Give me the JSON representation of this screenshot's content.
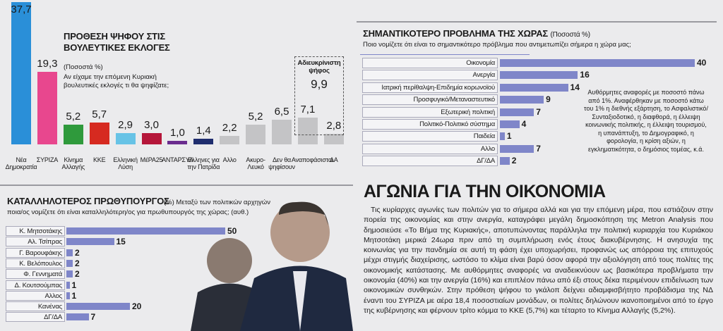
{
  "chart_data": [
    {
      "type": "bar",
      "title": "ΠΡΟΘΕΣΗ ΨΗΦΟΥ ΣΤΙΣ ΒΟΥΛΕΥΤΙΚΕΣ ΕΚΛΟΓΕΣ",
      "subtitle": "(Ποσοστά %)",
      "question": "Αν είχαμε την επόμενη Κυριακή βουλευτικές εκλογές τι θα ψηφίζατε;",
      "categories": [
        "Νέα Δημοκρατία",
        "ΣΥΡΙΖΑ",
        "Κίνημα Αλλαγής",
        "ΚΚΕ",
        "Ελληνική Λύση",
        "ΜέΡΑ25",
        "ΑΝΤΑΡΣΥΑ",
        "Ελληνες για την Πατρίδα",
        "Αλλο",
        "Ακυρο-Λευκό",
        "Δεν θα ψηφίσουν",
        "Αναποφάσιστοι",
        "ΔΑ"
      ],
      "values": [
        37.7,
        19.3,
        5.2,
        5.7,
        2.9,
        3.0,
        1.0,
        1.4,
        2.2,
        5.2,
        6.5,
        7.1,
        2.8
      ],
      "value_labels": [
        "37,7",
        "19,3",
        "5,2",
        "5,7",
        "2,9",
        "3,0",
        "1,0",
        "1,4",
        "2,2",
        "5,2",
        "6,5",
        "7,1",
        "2,8"
      ],
      "colors": [
        "#2a8fd8",
        "#e8478e",
        "#2f9a3c",
        "#d62a20",
        "#67c3e6",
        "#b5163a",
        "#6a2c8e",
        "#1f2d6e",
        "#c4c4c6",
        "#c4c4c6",
        "#c4c4c6",
        "#c4c4c6",
        "#c4c4c6"
      ],
      "annotation": {
        "label": "Αδιευκρίνιστη ψήφος",
        "value": 9.9,
        "value_label": "9,9"
      }
    },
    {
      "type": "barh",
      "title": "ΣΗΜΑΝΤΙΚΟΤΕΡΟ ΠΡΟΒΛΗΜΑ ΤΗΣ ΧΩΡΑΣ",
      "subtitle": "(Ποσοστά %)",
      "question": "Ποιο νομίζετε ότι είναι το σημαντικότερο πρόβλημα που αντιμετωπίζει σήμερα η χώρα μας;",
      "categories": [
        "Οικονομία",
        "Ανεργία",
        "Ιατρική περίθαλψη-Επιδημία κορωνοϊού",
        "Προσφυγικό/Μεταναστευτικό",
        "Εξωτερική πολιτική",
        "Πολιτικό-Πολιτικό σύστημα",
        "Παιδεία",
        "Αλλο",
        "ΔΓ/ΔΑ"
      ],
      "values": [
        40,
        16,
        14,
        9,
        7,
        4,
        1,
        7,
        2
      ],
      "color": "#7f86c9",
      "note": "Αυθόρμητες αναφορές με ποσοστό πάνω από 1%. Αναφέρθηκαν με ποσοστό κάτω του 1% η διεθνής εξάρτηση, το Ασφαλιστικό/Συνταξιοδοτικό, η διαφθορά, η έλλειψη κοινωνικής πολιτικής, η έλλειψη τουρισμού, η υπανάπτυξη, το Δημογραφικό, η φορολογία, η κρίση αξιών, η εγκληματικότητα, ο δημόσιος τομέας, κ.ά."
    },
    {
      "type": "barh",
      "title": "ΚΑΤΑΛΛΗΛΟΤΕΡΟΣ ΠΡΩΘΥΠΟΥΡΓΟΣ",
      "subtitle": "(%) Μεταξύ των πολιτικών αρχηγών ποια/ος νομίζετε ότι είναι καταλληλότερη/ος για πρωθυπουργός της χώρας; (αυθ.)",
      "categories": [
        "Κ. Μητσοτάκης",
        "Αλ. Τσίπρας",
        "Γ. Βαρουφάκης",
        "Κ. Βελόπουλος",
        "Φ. Γεννηματά",
        "Δ. Κουτσούμπας",
        "Αλλος",
        "Κανένας",
        "ΔΓ/ΔΑ"
      ],
      "values": [
        50,
        15,
        2,
        2,
        2,
        1,
        1,
        20,
        7
      ],
      "color": "#7f86c9"
    }
  ],
  "article": {
    "title": "ΑΓΩΝΙΑ ΓΙΑ ΤΗΝ ΟΙΚΟΝΟΜΙΑ",
    "body": "Τις κυρίαρχες αγωνίες των πολιτών για το σήμερα αλλά και για την επόμενη μέρα, που εστιάζουν στην πορεία της οικονομίας και στην ανεργία, καταγράφει μεγάλη δημοσκόπηση της Metron Analysis που δημοσιεύσε «Το Βήμα της Κυριακής», αποτυπώνοντας παράλληλα την πολιτική κυριαρχία του Κυριάκου Μητσοτάκη μερικά 24ωρα πριν από τη συμπλήρωση ενός έτους διακυβέρνησης. Η ανησυχία της κοινωνίας για την πανδημία σε αυτή τη φάση έχει υποχωρήσει, προφανώς ως απόρροια της επιτυχούς μέχρι στιγμής διαχείρισης, ωστόσο το κλίμα είναι βαρύ όσον αφορά την αξιολόγηση από τους πολίτες της οικονομικής κατάστασης. Με αυθόρμητες αναφορές να αναδεικνύουν ως βασικότερα προβλήματα την οικονομία (40%) και την ανεργία (16%) και επιπλέον πάνω από έξι στους δέκα περιμένουν επιδείνωση των οικονομικών συνθηκών. Στην πρόθεση ψήφου το γκάλοπ δείχνει αδιαμφισβήτητο προβάδισμα της ΝΔ έναντι του ΣΥΡΙΖΑ με αέρα 18,4 ποσοστιαίων μονάδων, οι πολίτες δηλώνουν ικανοποιημένοι από το έργο της κυβέρνησης και φέρνουν τρίτο κόμμα το ΚΚΕ (5,7%) και τέταρτο το Κίνημα Αλλαγής (5,2%)."
  }
}
